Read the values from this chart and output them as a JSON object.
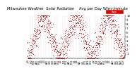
{
  "title": "Milwaukee Weather  Solar Radiation    Avg per Day W/m²/minute",
  "title_fontsize": 3.8,
  "background_color": "#ffffff",
  "plot_bg_color": "#ffffff",
  "dot_color_primary": "#dd0000",
  "dot_color_secondary": "#000000",
  "ylim": [
    0,
    10
  ],
  "yticks": [
    1,
    2,
    3,
    4,
    5,
    6,
    7,
    8,
    9,
    10
  ],
  "ytick_fontsize": 2.8,
  "xtick_fontsize": 2.2,
  "legend_color": "#dd0000",
  "legend_label": "Avg",
  "vline_color": "#bbbbbb",
  "n_years": 3,
  "seed": 42
}
